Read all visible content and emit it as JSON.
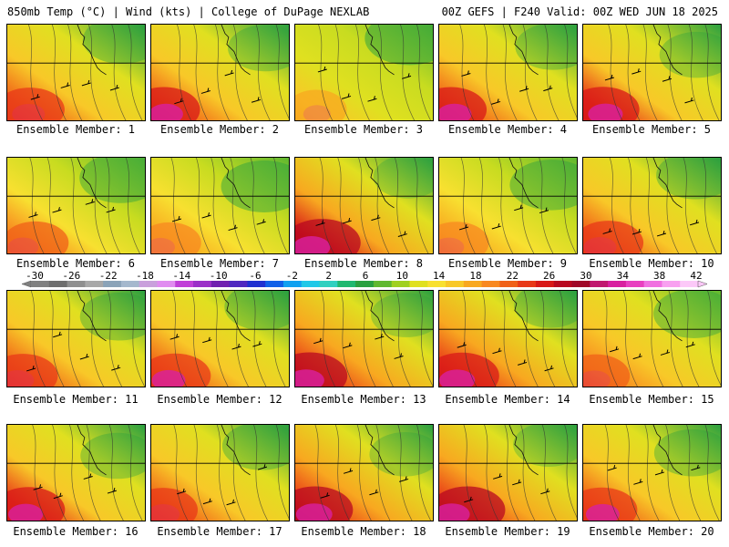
{
  "header": {
    "left": "850mb Temp (°C) | Wind (kts) | College of DuPage NEXLAB",
    "right": "00Z GEFS | F240 Valid: 00Z WED JUN 18 2025"
  },
  "panels": [
    {
      "label": "Ensemble Member: 1",
      "warm": 0.55
    },
    {
      "label": "Ensemble Member: 2",
      "warm": 0.6
    },
    {
      "label": "Ensemble Member: 3",
      "warm": 0.35
    },
    {
      "label": "Ensemble Member: 4",
      "warm": 0.6
    },
    {
      "label": "Ensemble Member: 5",
      "warm": 0.62
    },
    {
      "label": "Ensemble Member: 6",
      "warm": 0.48
    },
    {
      "label": "Ensemble Member: 7",
      "warm": 0.4
    },
    {
      "label": "Ensemble Member: 8",
      "warm": 0.72
    },
    {
      "label": "Ensemble Member: 9",
      "warm": 0.45
    },
    {
      "label": "Ensemble Member: 10",
      "warm": 0.55
    },
    {
      "label": "Ensemble Member: 11",
      "warm": 0.55
    },
    {
      "label": "Ensemble Member: 12",
      "warm": 0.58
    },
    {
      "label": "Ensemble Member: 13",
      "warm": 0.68
    },
    {
      "label": "Ensemble Member: 14",
      "warm": 0.66
    },
    {
      "label": "Ensemble Member: 15",
      "warm": 0.5
    },
    {
      "label": "Ensemble Member: 16",
      "warm": 0.62
    },
    {
      "label": "Ensemble Member: 17",
      "warm": 0.55
    },
    {
      "label": "Ensemble Member: 18",
      "warm": 0.68
    },
    {
      "label": "Ensemble Member: 19",
      "warm": 0.68
    },
    {
      "label": "Ensemble Member: 20",
      "warm": 0.58
    }
  ],
  "colorbar": {
    "ticks": [
      "-30",
      "-26",
      "-22",
      "-18",
      "-14",
      "-10",
      "-6",
      "-2",
      "2",
      "6",
      "10",
      "14",
      "18",
      "22",
      "26",
      "30",
      "34",
      "38",
      "42"
    ],
    "colors": [
      "#808080",
      "#6e6e6e",
      "#8f8f8f",
      "#a8a8a8",
      "#8ba3b8",
      "#a5b8cd",
      "#c9a0dc",
      "#e08cf0",
      "#c040d8",
      "#9b30c8",
      "#7020b0",
      "#5028c0",
      "#2030d0",
      "#1060e8",
      "#10a0f0",
      "#20c8e8",
      "#30d0c0",
      "#20b870",
      "#2aa040",
      "#60b830",
      "#a0d020",
      "#e0e020",
      "#f8e030",
      "#f8c828",
      "#f8a820",
      "#f88820",
      "#f06018",
      "#e83818",
      "#d81818",
      "#b80820",
      "#a00828",
      "#c01870",
      "#d820a0",
      "#e840c0",
      "#f070e0",
      "#f8a0f0",
      "#fcc8f8"
    ]
  }
}
